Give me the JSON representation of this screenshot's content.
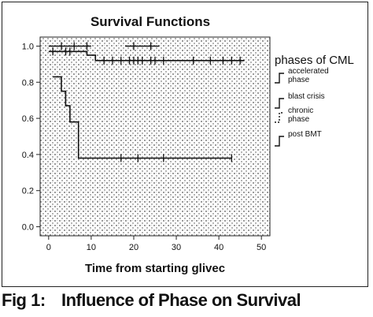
{
  "chart_data": {
    "type": "line",
    "title": "Survival Functions",
    "xlabel": "Time from starting glivec",
    "ylabel": "",
    "xlim": [
      -2,
      52
    ],
    "ylim": [
      -0.05,
      1.05
    ],
    "xticks": [
      0,
      10,
      20,
      30,
      40,
      50
    ],
    "xtick_labels": [
      "0",
      "10",
      "20",
      "30",
      "40",
      "50"
    ],
    "yticks": [
      0.0,
      0.2,
      0.4,
      0.6,
      0.8,
      1.0
    ],
    "ytick_labels": [
      "0.0",
      "0.2",
      "0.4",
      "0.6",
      "0.8",
      "1.0"
    ],
    "grid": false,
    "background": "dotted halftone",
    "legend_title": "phases of CML",
    "legend_position": "right",
    "series": [
      {
        "name": "accelerated phase",
        "color": "#111111",
        "steps": [
          [
            0,
            1.0
          ],
          [
            10,
            1.0
          ]
        ],
        "censored": [
          [
            3,
            1.0
          ],
          [
            6,
            1.0
          ],
          [
            9,
            1.0
          ]
        ]
      },
      {
        "name": "blast crisis",
        "color": "#111111",
        "steps": [
          [
            1,
            0.83
          ],
          [
            3,
            0.83
          ],
          [
            3,
            0.75
          ],
          [
            4,
            0.75
          ],
          [
            4,
            0.67
          ],
          [
            5,
            0.67
          ],
          [
            5,
            0.58
          ],
          [
            7,
            0.58
          ],
          [
            7,
            0.38
          ],
          [
            43,
            0.38
          ]
        ],
        "censored": [
          [
            17,
            0.38
          ],
          [
            21,
            0.38
          ],
          [
            27,
            0.38
          ],
          [
            43,
            0.38
          ]
        ]
      },
      {
        "name": "chronic phase",
        "color": "#111111",
        "steps": [
          [
            0,
            0.97
          ],
          [
            9,
            0.97
          ],
          [
            9,
            0.95
          ],
          [
            11,
            0.95
          ],
          [
            11,
            0.92
          ],
          [
            46,
            0.92
          ]
        ],
        "censored": [
          [
            1,
            0.97
          ],
          [
            4,
            0.97
          ],
          [
            5,
            0.97
          ],
          [
            13,
            0.92
          ],
          [
            15,
            0.92
          ],
          [
            17,
            0.92
          ],
          [
            19,
            0.92
          ],
          [
            20,
            0.92
          ],
          [
            21,
            0.92
          ],
          [
            22,
            0.92
          ],
          [
            24,
            0.92
          ],
          [
            25,
            0.92
          ],
          [
            27,
            0.92
          ],
          [
            34,
            0.92
          ],
          [
            38,
            0.92
          ],
          [
            41,
            0.92
          ],
          [
            43,
            0.92
          ],
          [
            45,
            0.92
          ]
        ]
      },
      {
        "name": "post BMT",
        "color": "#111111",
        "steps": [
          [
            18,
            1.0
          ],
          [
            26,
            1.0
          ]
        ],
        "censored": [
          [
            20,
            1.0
          ],
          [
            24,
            1.0
          ]
        ]
      }
    ]
  },
  "caption": {
    "number": "Fig 1:",
    "text": "Influence of Phase on Survival"
  }
}
